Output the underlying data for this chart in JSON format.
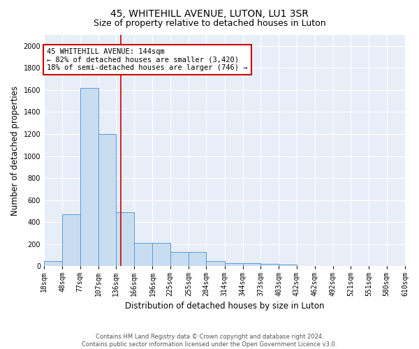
{
  "title": "45, WHITEHILL AVENUE, LUTON, LU1 3SR",
  "subtitle": "Size of property relative to detached houses in Luton",
  "xlabel": "Distribution of detached houses by size in Luton",
  "ylabel": "Number of detached properties",
  "bin_edges": [
    18,
    48,
    77,
    107,
    136,
    166,
    196,
    225,
    255,
    284,
    314,
    344,
    373,
    403,
    432,
    462,
    492,
    521,
    551,
    580,
    610
  ],
  "bar_heights": [
    50,
    470,
    1620,
    1200,
    490,
    210,
    210,
    130,
    130,
    50,
    30,
    30,
    20,
    15,
    0,
    0,
    0,
    0,
    0,
    0
  ],
  "bar_color": "#c9ddf0",
  "bar_edge_color": "#5b9bd5",
  "background_color": "#e8eef8",
  "grid_color": "#ffffff",
  "property_size": 144,
  "vline_color": "#cc0000",
  "annotation_text": "45 WHITEHILL AVENUE: 144sqm\n← 82% of detached houses are smaller (3,420)\n18% of semi-detached houses are larger (746) →",
  "annotation_box_color": "#ffffff",
  "annotation_border_color": "#cc0000",
  "ylim": [
    0,
    2100
  ],
  "yticks": [
    0,
    200,
    400,
    600,
    800,
    1000,
    1200,
    1400,
    1600,
    1800,
    2000
  ],
  "footnote": "Contains HM Land Registry data © Crown copyright and database right 2024.\nContains public sector information licensed under the Open Government Licence v3.0.",
  "title_fontsize": 10,
  "subtitle_fontsize": 9,
  "tick_fontsize": 7,
  "ylabel_fontsize": 8.5,
  "xlabel_fontsize": 8.5,
  "annot_fontsize": 7.5
}
